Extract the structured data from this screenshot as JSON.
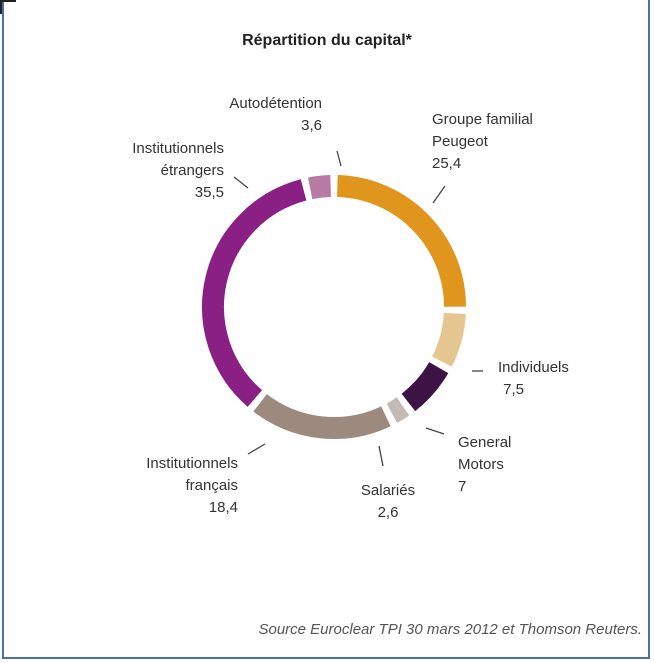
{
  "chart_data": {
    "type": "pie",
    "title": "Répartition du capital*",
    "slices": [
      {
        "name": "Groupe familial Peugeot",
        "label_lines": [
          "Groupe familial",
          "Peugeot"
        ],
        "value": 25.4,
        "value_text": "25,4",
        "color": "#e0961c"
      },
      {
        "name": "Individuels",
        "label_lines": [
          "Individuels"
        ],
        "value": 7.5,
        "value_text": "7,5",
        "color": "#e6c690"
      },
      {
        "name": "General Motors",
        "label_lines": [
          "General",
          "Motors"
        ],
        "value": 7,
        "value_text": "7",
        "color": "#3d1244"
      },
      {
        "name": "Salariés",
        "label_lines": [
          "Salariés"
        ],
        "value": 2.6,
        "value_text": "2,6",
        "color": "#c4bab4"
      },
      {
        "name": "Institutionnels français",
        "label_lines": [
          "Institutionnels",
          "français"
        ],
        "value": 18.4,
        "value_text": "18,4",
        "color": "#9c8a7e"
      },
      {
        "name": "Institutionnels étrangers",
        "label_lines": [
          "Institutionnels",
          "étrangers"
        ],
        "value": 35.5,
        "value_text": "35,5",
        "color": "#8a1f84"
      },
      {
        "name": "Autodétention",
        "label_lines": [
          "Autodétention"
        ],
        "value": 3.6,
        "value_text": "3,6",
        "color": "#b77aa4"
      }
    ],
    "source": "Source Euroclear TPI 30 mars 2012 et Thomson Reuters."
  }
}
